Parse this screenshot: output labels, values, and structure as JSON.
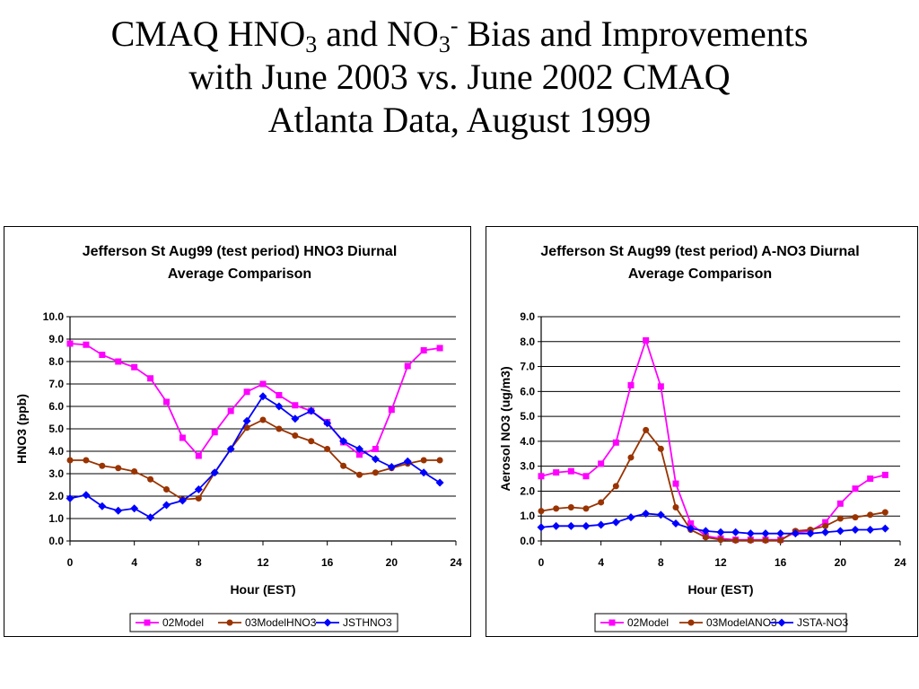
{
  "slide": {
    "title_line1_a": "CMAQ HNO",
    "title_line1_sub1": "3",
    "title_line1_b": " and NO",
    "title_line1_sub2": "3",
    "title_line1_sup": "-",
    "title_line1_c": " Bias and Improvements",
    "title_line2": "with June 2003 vs. June 2002 CMAQ",
    "title_line3": "Atlanta Data, August 1999"
  },
  "colors": {
    "model02": "#ff00ff",
    "model03": "#993300",
    "obs": "#0000ff"
  },
  "chart_data": [
    {
      "type": "line",
      "title_lines": [
        "Jefferson St Aug99  (test period) HNO3 Diurnal",
        "Average Comparison"
      ],
      "xlabel": "Hour (EST)",
      "ylabel": "HNO3 (ppb)",
      "xlim": [
        0,
        24
      ],
      "ylim": [
        0,
        10
      ],
      "xticks": [
        "0",
        "4",
        "8",
        "12",
        "16",
        "20",
        "24"
      ],
      "yticks": [
        "0.0",
        "1.0",
        "2.0",
        "3.0",
        "4.0",
        "5.0",
        "6.0",
        "7.0",
        "8.0",
        "9.0",
        "10.0"
      ],
      "grid": "horizontal",
      "legend_position": "bottom",
      "x": [
        0,
        1,
        2,
        3,
        4,
        5,
        6,
        7,
        8,
        9,
        10,
        11,
        12,
        13,
        14,
        15,
        16,
        17,
        18,
        19,
        20,
        21,
        22,
        23
      ],
      "series": [
        {
          "name": "02Model",
          "marker": "square",
          "color": "#ff00ff",
          "values": [
            8.8,
            8.75,
            8.3,
            8.0,
            7.75,
            7.25,
            6.2,
            4.6,
            3.8,
            4.85,
            5.8,
            6.65,
            7.0,
            6.5,
            6.05,
            5.8,
            5.3,
            4.4,
            3.85,
            4.1,
            5.85,
            7.8,
            8.5,
            8.6
          ]
        },
        {
          "name": "03ModelHNO3",
          "marker": "circle",
          "color": "#993300",
          "values": [
            3.6,
            3.6,
            3.35,
            3.25,
            3.1,
            2.75,
            2.3,
            1.85,
            1.9,
            3.05,
            4.1,
            5.05,
            5.4,
            5.0,
            4.7,
            4.45,
            4.1,
            3.35,
            2.95,
            3.05,
            3.25,
            3.45,
            3.6,
            3.6
          ]
        },
        {
          "name": "JSTHNO3",
          "marker": "diamond",
          "color": "#0000ff",
          "values": [
            1.9,
            2.05,
            1.55,
            1.35,
            1.45,
            1.05,
            1.6,
            1.8,
            2.3,
            3.05,
            4.1,
            5.35,
            6.45,
            6.0,
            5.45,
            5.8,
            5.25,
            4.45,
            4.1,
            3.65,
            3.3,
            3.55,
            3.05,
            2.6
          ]
        }
      ]
    },
    {
      "type": "line",
      "title_lines": [
        "Jefferson St Aug99 (test period) A-NO3 Diurnal",
        "Average Comparison"
      ],
      "xlabel": "Hour (EST)",
      "ylabel": "Aerosol NO3 (ug/m3)",
      "xlim": [
        0,
        24
      ],
      "ylim": [
        0,
        9
      ],
      "xticks": [
        "0",
        "4",
        "8",
        "12",
        "16",
        "20",
        "24"
      ],
      "yticks": [
        "0.0",
        "1.0",
        "2.0",
        "3.0",
        "4.0",
        "5.0",
        "6.0",
        "7.0",
        "8.0",
        "9.0"
      ],
      "grid": "horizontal",
      "legend_position": "bottom",
      "x": [
        0,
        1,
        2,
        3,
        4,
        5,
        6,
        7,
        8,
        9,
        10,
        11,
        12,
        13,
        14,
        15,
        16,
        17,
        18,
        19,
        20,
        21,
        22,
        23
      ],
      "series": [
        {
          "name": "02Model",
          "marker": "square",
          "color": "#ff00ff",
          "values": [
            2.6,
            2.75,
            2.8,
            2.6,
            3.1,
            3.95,
            6.25,
            8.05,
            6.2,
            2.3,
            0.7,
            0.2,
            0.1,
            0.05,
            0.05,
            0.05,
            0.05,
            0.35,
            0.4,
            0.75,
            1.5,
            2.1,
            2.5,
            2.65
          ]
        },
        {
          "name": "03ModelANO3",
          "marker": "circle",
          "color": "#993300",
          "values": [
            1.2,
            1.3,
            1.35,
            1.3,
            1.55,
            2.2,
            3.35,
            4.45,
            3.7,
            1.35,
            0.45,
            0.15,
            0.05,
            0.02,
            0.02,
            0.02,
            0.02,
            0.4,
            0.45,
            0.6,
            0.9,
            0.95,
            1.05,
            1.15
          ]
        },
        {
          "name": "JSTA-NO3",
          "marker": "diamond",
          "color": "#0000ff",
          "values": [
            0.55,
            0.6,
            0.6,
            0.6,
            0.65,
            0.75,
            0.95,
            1.1,
            1.05,
            0.7,
            0.5,
            0.4,
            0.35,
            0.35,
            0.3,
            0.3,
            0.3,
            0.3,
            0.3,
            0.35,
            0.4,
            0.45,
            0.45,
            0.5
          ]
        }
      ]
    }
  ]
}
